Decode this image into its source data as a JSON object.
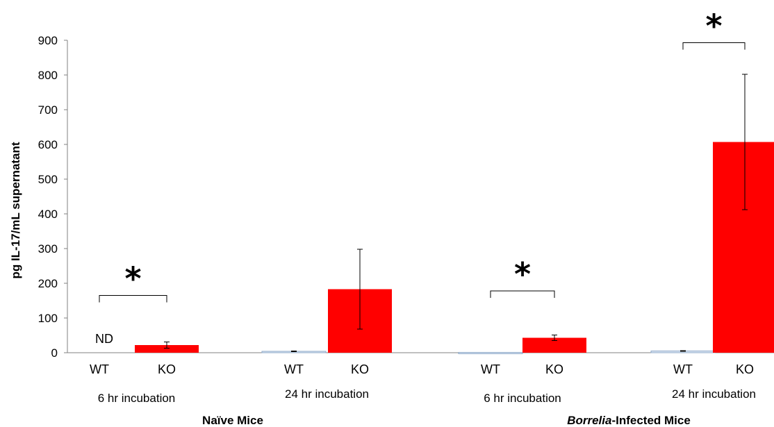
{
  "chart_data": {
    "type": "bar",
    "ylabel": "pg IL-17/mL supernatant",
    "ylim": [
      0,
      900
    ],
    "yticks": [
      "0",
      "100",
      "200",
      "300",
      "400",
      "500",
      "600",
      "700",
      "800",
      "900"
    ],
    "grid": false,
    "legend": "none",
    "colors": {
      "WT": "#dce6f2",
      "KO": "#ff0000",
      "axis": "#808080",
      "error": "#000000"
    },
    "bars": [
      {
        "category": "WT",
        "group": "6 hr incubation",
        "mice": "Naïve Mice",
        "value": 0,
        "error": 0,
        "label": "ND"
      },
      {
        "category": "KO",
        "group": "6 hr incubation",
        "mice": "Naïve Mice",
        "value": 22,
        "error": 9
      },
      {
        "category": "WT",
        "group": "24 hr incubation",
        "mice": "Naïve Mice",
        "value": 4,
        "error": 1
      },
      {
        "category": "KO",
        "group": "24 hr incubation",
        "mice": "Naïve Mice",
        "value": 183,
        "error": 115
      },
      {
        "category": "WT",
        "group": "6 hr incubation",
        "mice": "Borrelia-Infected Mice",
        "value": 1,
        "error": 0
      },
      {
        "category": "KO",
        "group": "6 hr incubation",
        "mice": "Borrelia-Infected Mice",
        "value": 43,
        "error": 8
      },
      {
        "category": "WT",
        "group": "24 hr incubation",
        "mice": "Borrelia-Infected Mice",
        "value": 5,
        "error": 1
      },
      {
        "category": "KO",
        "group": "24 hr incubation",
        "mice": "Borrelia-Infected Mice",
        "value": 607,
        "error": 195
      }
    ],
    "groups": [
      "6 hr incubation",
      "24 hr incubation",
      "6 hr incubation",
      "24 hr incubation"
    ],
    "super_groups": [
      {
        "name": "Naïve Mice",
        "italic_part": "",
        "rest": "Naïve Mice"
      },
      {
        "name": "Borrelia-Infected Mice",
        "italic_part": "Borrelia",
        "rest": "-Infected Mice"
      }
    ],
    "annotations": [
      {
        "text": "*",
        "between": [
          0,
          1
        ],
        "bracket_value": 165
      },
      {
        "text": "*",
        "between": [
          4,
          5
        ],
        "bracket_value": 178
      },
      {
        "text": "*",
        "between": [
          6,
          7
        ],
        "bracket_value": 893
      }
    ]
  }
}
